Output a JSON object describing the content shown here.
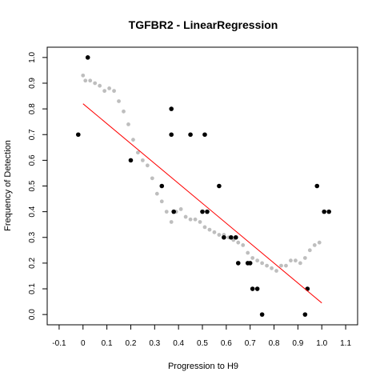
{
  "chart_data": {
    "type": "scatter",
    "title": "TGFBR2 - LinearRegression",
    "xlabel": "Progression to H9",
    "ylabel": "Frequency of Detection",
    "xlim": [
      -0.15,
      1.15
    ],
    "ylim": [
      -0.04,
      1.04
    ],
    "x_ticks": [
      "-0.1",
      "0",
      "0.1",
      "0.2",
      "0.3",
      "0.4",
      "0.5",
      "0.6",
      "0.7",
      "0.8",
      "0.9",
      "1.0",
      "1.1"
    ],
    "y_ticks": [
      "0.0",
      "0.1",
      "0.2",
      "0.3",
      "0.4",
      "0.5",
      "0.6",
      "0.7",
      "0.8",
      "0.9",
      "1.0"
    ],
    "colors": {
      "points": "#000000",
      "smooth": "#bebebe",
      "regression": "#ff0000"
    },
    "series": [
      {
        "kind": "observed",
        "points": [
          [
            -0.02,
            0.7
          ],
          [
            0.02,
            1.0
          ],
          [
            0.2,
            0.6
          ],
          [
            0.33,
            0.5
          ],
          [
            0.37,
            0.8
          ],
          [
            0.37,
            0.7
          ],
          [
            0.38,
            0.4
          ],
          [
            0.45,
            0.7
          ],
          [
            0.5,
            0.4
          ],
          [
            0.51,
            0.7
          ],
          [
            0.52,
            0.4
          ],
          [
            0.57,
            0.5
          ],
          [
            0.59,
            0.3
          ],
          [
            0.62,
            0.3
          ],
          [
            0.64,
            0.3
          ],
          [
            0.65,
            0.2
          ],
          [
            0.69,
            0.2
          ],
          [
            0.7,
            0.2
          ],
          [
            0.71,
            0.1
          ],
          [
            0.73,
            0.1
          ],
          [
            0.75,
            0.0
          ],
          [
            0.93,
            0.0
          ],
          [
            0.94,
            0.1
          ],
          [
            0.98,
            0.5
          ],
          [
            1.01,
            0.4
          ],
          [
            1.03,
            0.4
          ]
        ]
      },
      {
        "kind": "smoothed",
        "points": [
          [
            0.0,
            0.93
          ],
          [
            0.01,
            0.91
          ],
          [
            0.03,
            0.91
          ],
          [
            0.05,
            0.9
          ],
          [
            0.07,
            0.89
          ],
          [
            0.09,
            0.87
          ],
          [
            0.11,
            0.88
          ],
          [
            0.13,
            0.87
          ],
          [
            0.15,
            0.83
          ],
          [
            0.17,
            0.79
          ],
          [
            0.19,
            0.74
          ],
          [
            0.21,
            0.68
          ],
          [
            0.23,
            0.63
          ],
          [
            0.25,
            0.6
          ],
          [
            0.27,
            0.58
          ],
          [
            0.29,
            0.53
          ],
          [
            0.31,
            0.47
          ],
          [
            0.33,
            0.44
          ],
          [
            0.35,
            0.4
          ],
          [
            0.37,
            0.36
          ],
          [
            0.39,
            0.4
          ],
          [
            0.41,
            0.41
          ],
          [
            0.43,
            0.38
          ],
          [
            0.45,
            0.37
          ],
          [
            0.47,
            0.37
          ],
          [
            0.49,
            0.36
          ],
          [
            0.51,
            0.34
          ],
          [
            0.53,
            0.33
          ],
          [
            0.55,
            0.32
          ],
          [
            0.57,
            0.31
          ],
          [
            0.59,
            0.31
          ],
          [
            0.61,
            0.3
          ],
          [
            0.63,
            0.29
          ],
          [
            0.65,
            0.28
          ],
          [
            0.67,
            0.27
          ],
          [
            0.69,
            0.24
          ],
          [
            0.71,
            0.22
          ],
          [
            0.73,
            0.21
          ],
          [
            0.75,
            0.2
          ],
          [
            0.77,
            0.19
          ],
          [
            0.79,
            0.18
          ],
          [
            0.81,
            0.17
          ],
          [
            0.83,
            0.19
          ],
          [
            0.85,
            0.19
          ],
          [
            0.87,
            0.21
          ],
          [
            0.89,
            0.21
          ],
          [
            0.91,
            0.2
          ],
          [
            0.93,
            0.22
          ],
          [
            0.95,
            0.25
          ],
          [
            0.97,
            0.27
          ],
          [
            0.99,
            0.28
          ]
        ]
      }
    ],
    "regression_line": {
      "from": [
        0.0,
        0.82
      ],
      "to": [
        1.0,
        0.045
      ]
    }
  }
}
